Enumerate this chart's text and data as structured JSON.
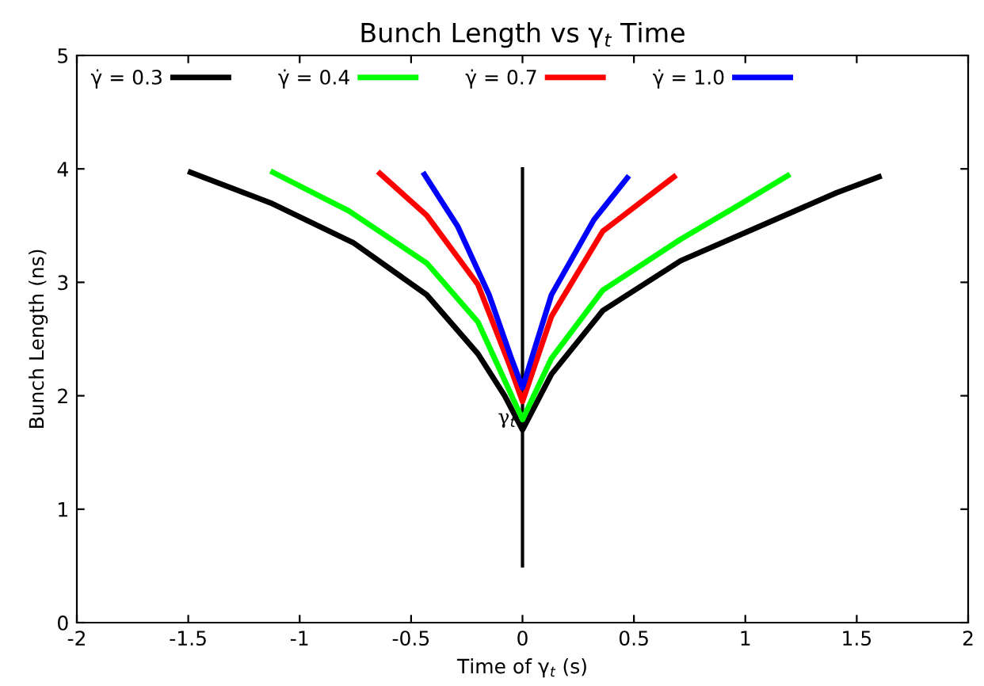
{
  "chart_data": {
    "type": "line",
    "title": "Bunch Length vs γ$_{t}$ Time",
    "xlabel": "Time of γ$_{t}$ (s)",
    "ylabel": "Bunch Length (ns)",
    "xlim": [
      -2,
      2
    ],
    "ylim": [
      0,
      5
    ],
    "xticks": [
      -2,
      -1.5,
      -1,
      -0.5,
      0,
      0.5,
      1,
      1.5,
      2
    ],
    "yticks": [
      0,
      1,
      2,
      3,
      4,
      5
    ],
    "grid": false,
    "legend": "top left",
    "marker": "none",
    "line_style": "solid",
    "ref_lines": [
      {
        "axis": "x",
        "value": 0,
        "label": "γ$_{t}$",
        "color": "#000000"
      }
    ],
    "series": [
      {
        "name": "γ̇ = 0.3",
        "color": "#000000",
        "x": [
          -1.49,
          -1.13,
          -0.76,
          -0.43,
          -0.2,
          -0.08,
          0,
          0.13,
          0.36,
          0.71,
          1.06,
          1.41,
          1.6
        ],
        "values": [
          3.97,
          3.7,
          3.35,
          2.89,
          2.37,
          2.0,
          1.7,
          2.19,
          2.75,
          3.19,
          3.49,
          3.79,
          3.93
        ]
      },
      {
        "name": "γ̇ = 0.4",
        "color": "#00ff00",
        "x": [
          -1.12,
          -0.78,
          -0.43,
          -0.2,
          -0.06,
          0,
          0.13,
          0.36,
          0.71,
          0.97,
          1.19
        ],
        "values": [
          3.97,
          3.63,
          3.17,
          2.65,
          2.05,
          1.79,
          2.33,
          2.93,
          3.38,
          3.68,
          3.94
        ]
      },
      {
        "name": "γ̇ = 0.7",
        "color": "#ff0000",
        "x": [
          -0.64,
          -0.43,
          -0.2,
          -0.06,
          0,
          0.13,
          0.36,
          0.68
        ],
        "values": [
          3.96,
          3.59,
          2.98,
          2.28,
          1.95,
          2.7,
          3.45,
          3.93
        ]
      },
      {
        "name": "γ̇ = 1.0",
        "color": "#0000ff",
        "x": [
          -0.44,
          -0.29,
          -0.15,
          -0.05,
          0,
          0.13,
          0.32,
          0.47
        ],
        "values": [
          3.95,
          3.49,
          2.89,
          2.33,
          2.07,
          2.89,
          3.55,
          3.92
        ]
      }
    ]
  }
}
